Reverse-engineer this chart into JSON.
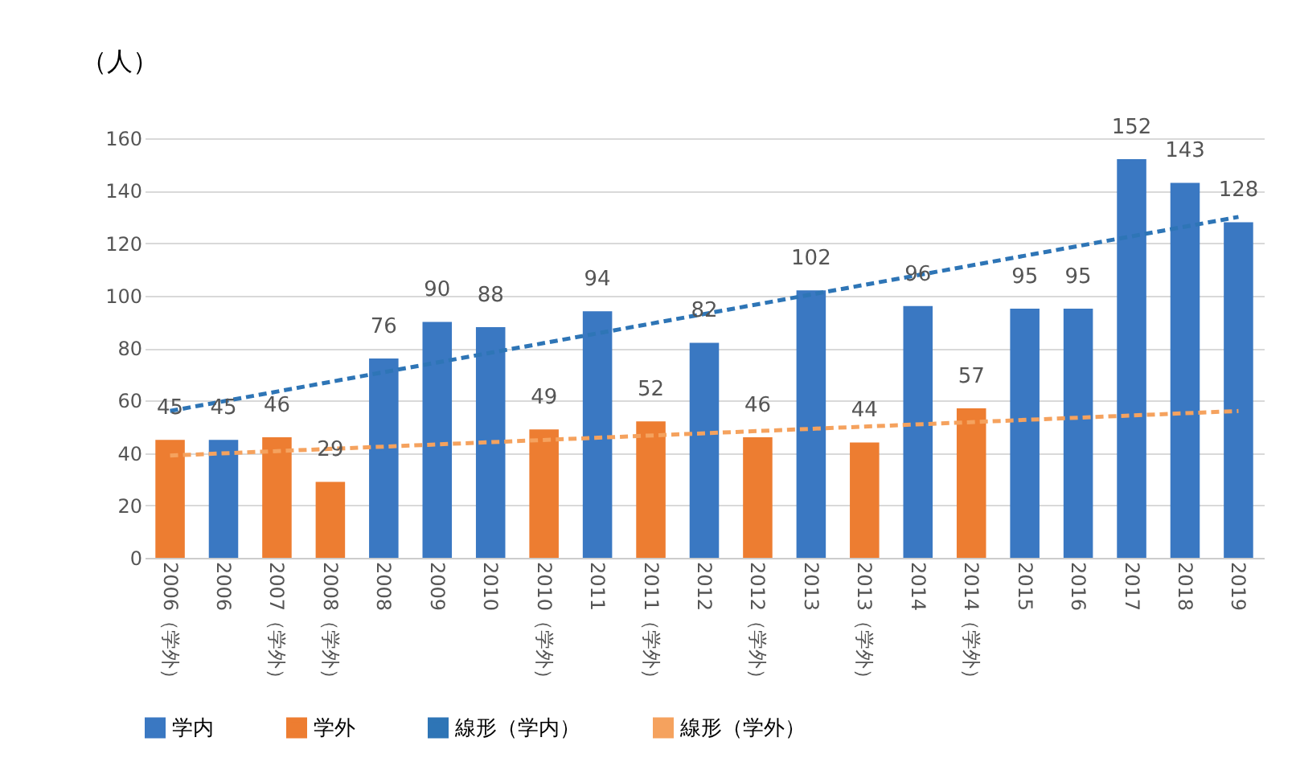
{
  "chart_data": {
    "type": "bar",
    "ylabel": "（人）",
    "categories": [
      "2006（学外）",
      "2006",
      "2007（学外）",
      "2008（学外）",
      "2008",
      "2009",
      "2010",
      "2010（学外）",
      "2011",
      "2011（学外）",
      "2012",
      "2012（学外）",
      "2013",
      "2013（学外）",
      "2014",
      "2014（学外）",
      "2015",
      "2016",
      "2017",
      "2018",
      "2019"
    ],
    "series": [
      {
        "name": "学内",
        "type": "bar",
        "color": "#3a78c2",
        "values": [
          null,
          45,
          null,
          null,
          76,
          90,
          88,
          null,
          94,
          null,
          82,
          null,
          102,
          null,
          96,
          null,
          95,
          95,
          152,
          143,
          128
        ],
        "value_labels": [
          null,
          "45",
          null,
          null,
          "76",
          "90",
          "88",
          null,
          "94",
          null,
          "82",
          null,
          "102",
          null,
          "96",
          null,
          "95",
          "95",
          "152",
          "143",
          "128"
        ]
      },
      {
        "name": "学外",
        "type": "bar",
        "color": "#ed7d31",
        "values": [
          45,
          null,
          46,
          29,
          null,
          null,
          null,
          49,
          null,
          52,
          null,
          46,
          null,
          44,
          null,
          57,
          null,
          null,
          null,
          null,
          null
        ],
        "value_labels": [
          "45",
          null,
          "46",
          "29",
          null,
          null,
          null,
          "49",
          null,
          "52",
          null,
          "46",
          null,
          "44",
          null,
          "57",
          null,
          null,
          null,
          null,
          null
        ]
      },
      {
        "name": "線形（学内）",
        "type": "line",
        "line_style": "dashed",
        "color": "#2e75b6",
        "values": [
          56,
          null,
          null,
          null,
          null,
          null,
          null,
          null,
          null,
          null,
          null,
          null,
          null,
          null,
          null,
          null,
          null,
          null,
          null,
          null,
          130
        ]
      },
      {
        "name": "線形（学外）",
        "type": "line",
        "line_style": "dashed",
        "color": "#f5a25e",
        "values": [
          39,
          null,
          null,
          null,
          null,
          null,
          null,
          null,
          null,
          null,
          null,
          null,
          null,
          null,
          null,
          null,
          null,
          null,
          null,
          null,
          56
        ]
      }
    ],
    "ylim": [
      0,
      160
    ],
    "yticks": [
      0,
      20,
      40,
      60,
      80,
      100,
      120,
      140,
      160
    ],
    "grid": "y",
    "legend": "bottom"
  }
}
